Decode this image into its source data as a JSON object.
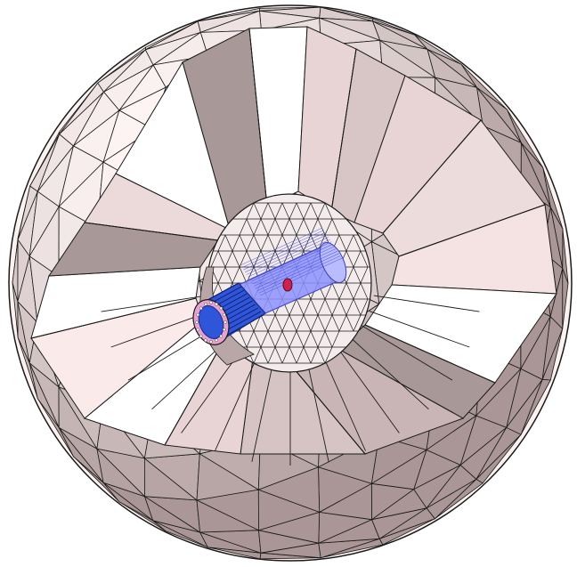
{
  "scene": {
    "subject": "geodesic-sphere-with-cylindrical-detector-core",
    "colors": {
      "background": "#ffffff",
      "shell_light": "#fff6f6",
      "shell_mid": "#e8d4d4",
      "shell_dark": "#a89898",
      "edge": "#1a1a1a",
      "cylinder_blue": "#2f55d8",
      "cylinder_light": "#8c93ff",
      "cylinder_dark": "#1c2a8a",
      "ring_pink": "#e9a3d1",
      "center_red": "#d02050"
    },
    "icons": []
  }
}
